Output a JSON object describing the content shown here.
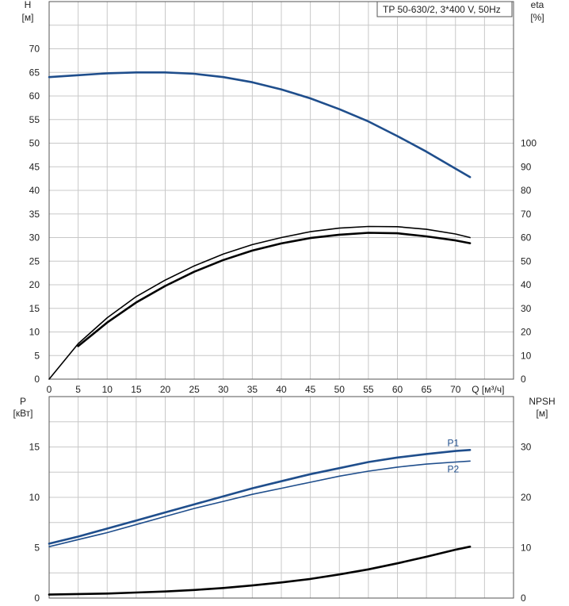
{
  "legend_box": "TP 50-630/2, 3*400 V, 50Hz",
  "chart_data": [
    {
      "type": "line",
      "panel": "top",
      "title": "",
      "xlabel": "Q [м³/ч]",
      "ylabel_left": "H",
      "ylabel_left_unit": "[м]",
      "ylabel_right": "eta",
      "ylabel_right_unit": "[%]",
      "xlim": [
        0,
        80
      ],
      "ylim_left": [
        0,
        80
      ],
      "ylim_right": [
        0,
        160
      ],
      "x_ticks": [
        "0",
        "5",
        "10",
        "15",
        "20",
        "25",
        "30",
        "35",
        "40",
        "45",
        "50",
        "55",
        "60",
        "65",
        "70"
      ],
      "y_left_ticks": [
        "0",
        "5",
        "10",
        "15",
        "20",
        "25",
        "30",
        "35",
        "40",
        "45",
        "50",
        "55",
        "60",
        "65",
        "70"
      ],
      "y_right_ticks": [
        "0",
        "10",
        "20",
        "30",
        "40",
        "50",
        "60",
        "70",
        "80",
        "90",
        "100"
      ],
      "grid": true,
      "series": [
        {
          "color": "#1f4e8c",
          "axis": "left",
          "x": [
            0,
            5,
            10,
            15,
            20,
            25,
            30,
            35,
            40,
            45,
            50,
            55,
            60,
            65,
            70,
            72.5
          ],
          "values": [
            64,
            64.4,
            64.8,
            65.0,
            65.0,
            64.7,
            64.0,
            62.9,
            61.4,
            59.5,
            57.2,
            54.6,
            51.5,
            48.2,
            44.6,
            42.8
          ]
        },
        {
          "color": "#000000",
          "axis": "right",
          "x": [
            0,
            5,
            10,
            15,
            20,
            25,
            30,
            35,
            40,
            45,
            50,
            55,
            60,
            65,
            70,
            72.5
          ],
          "values": [
            0,
            15,
            26,
            35,
            42,
            48,
            53,
            57,
            60,
            62.5,
            64,
            64.7,
            64.6,
            63.5,
            61.5,
            60
          ]
        },
        {
          "color": "#000000",
          "axis": "right",
          "x": [
            5,
            10,
            15,
            20,
            25,
            30,
            35,
            40,
            45,
            50,
            55,
            60,
            65,
            70,
            72.5
          ],
          "values": [
            14,
            24,
            32.5,
            39.5,
            45.5,
            50.5,
            54.5,
            57.5,
            59.8,
            61.2,
            62,
            61.8,
            60.5,
            58.8,
            57.6
          ]
        }
      ]
    },
    {
      "type": "line",
      "panel": "bottom",
      "title": "",
      "xlabel": "",
      "ylabel_left": "P",
      "ylabel_left_unit": "[кВт]",
      "ylabel_right": "NPSH",
      "ylabel_right_unit": "[м]",
      "xlim": [
        0,
        80
      ],
      "ylim_left": [
        0,
        20
      ],
      "ylim_right": [
        0,
        40
      ],
      "y_left_ticks": [
        "0",
        "5",
        "10",
        "15"
      ],
      "y_right_ticks": [
        "0",
        "10",
        "20",
        "30"
      ],
      "grid": true,
      "series": [
        {
          "name": "P1",
          "color": "#1f4e8c",
          "axis": "left",
          "x": [
            0,
            5,
            10,
            15,
            20,
            25,
            30,
            35,
            40,
            45,
            50,
            55,
            60,
            65,
            70,
            72.5
          ],
          "values": [
            5.4,
            6.1,
            6.9,
            7.7,
            8.5,
            9.3,
            10.1,
            10.9,
            11.6,
            12.3,
            12.9,
            13.5,
            13.95,
            14.3,
            14.6,
            14.7
          ]
        },
        {
          "name": "P2",
          "color": "#1f4e8c",
          "axis": "left",
          "x": [
            0,
            5,
            10,
            15,
            20,
            25,
            30,
            35,
            40,
            45,
            50,
            55,
            60,
            65,
            70,
            72.5
          ],
          "values": [
            5.1,
            5.8,
            6.5,
            7.3,
            8.1,
            8.9,
            9.6,
            10.3,
            10.9,
            11.5,
            12.1,
            12.6,
            13.0,
            13.3,
            13.5,
            13.6
          ]
        },
        {
          "color": "#000000",
          "axis": "right",
          "x": [
            0,
            5,
            10,
            15,
            20,
            25,
            30,
            35,
            40,
            45,
            50,
            55,
            60,
            65,
            70,
            72.5
          ],
          "values": [
            0.7,
            0.8,
            0.9,
            1.1,
            1.3,
            1.6,
            2.0,
            2.5,
            3.1,
            3.8,
            4.7,
            5.7,
            6.9,
            8.2,
            9.6,
            10.2
          ]
        }
      ]
    }
  ]
}
